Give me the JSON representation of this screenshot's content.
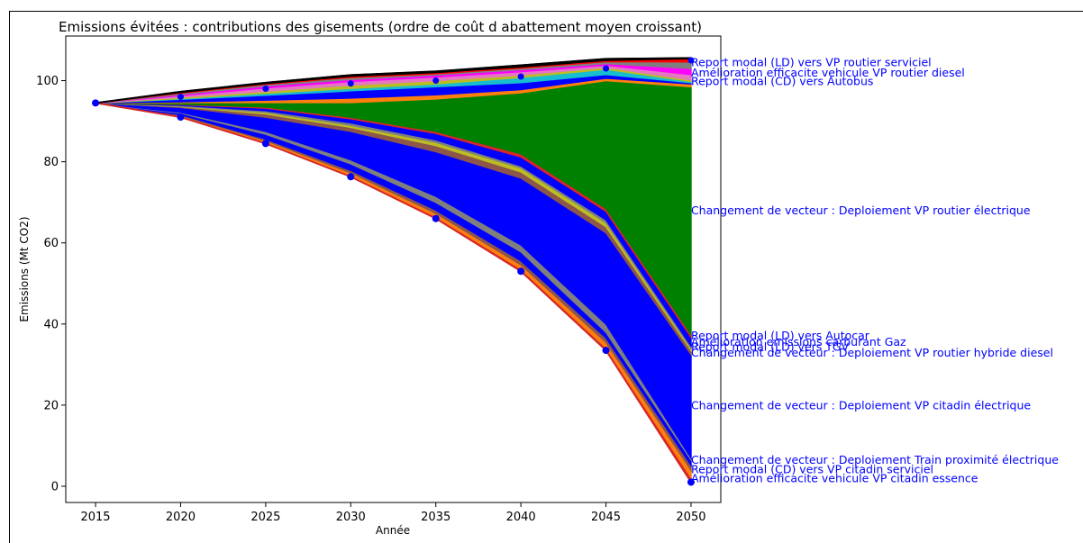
{
  "chart_data": {
    "type": "area",
    "title": "Emissions évitées : contributions des gisements (ordre de coût d abattement moyen croissant)",
    "xlabel": "Année",
    "ylabel": "Emissions (Mt CO2)",
    "x": [
      2015,
      2020,
      2025,
      2030,
      2035,
      2040,
      2045,
      2050
    ],
    "xticks": [
      "2015",
      "2020",
      "2025",
      "2030",
      "2035",
      "2040",
      "2045",
      "2050"
    ],
    "yticks": [
      "0",
      "20",
      "40",
      "60",
      "80",
      "100"
    ],
    "ylim": [
      -4,
      111
    ],
    "boundaries": [
      [
        94.5,
        91.0,
        84.5,
        76.3,
        66.0,
        53.0,
        33.5,
        1.0
      ],
      [
        94.5,
        91.2,
        84.8,
        76.7,
        66.5,
        53.6,
        34.2,
        2.2
      ],
      [
        94.5,
        91.4,
        85.2,
        77.3,
        67.3,
        54.6,
        35.5,
        4.0
      ],
      [
        94.5,
        91.6,
        85.6,
        77.9,
        68.1,
        55.6,
        36.6,
        5.2
      ],
      [
        94.5,
        92.0,
        86.8,
        79.5,
        70.0,
        57.8,
        38.0,
        6.5
      ],
      [
        94.5,
        92.2,
        87.5,
        80.5,
        71.5,
        59.5,
        40.0,
        7.0
      ],
      [
        94.5,
        93.4,
        91.0,
        87.5,
        82.5,
        76.0,
        62.5,
        32.5
      ],
      [
        94.5,
        93.6,
        91.8,
        88.5,
        84.0,
        77.5,
        64.0,
        33.5
      ],
      [
        94.5,
        93.7,
        92.2,
        89.0,
        84.8,
        78.5,
        65.0,
        34.0
      ],
      [
        94.5,
        93.9,
        92.6,
        89.6,
        85.4,
        79.0,
        65.7,
        34.6
      ],
      [
        94.5,
        94.1,
        93.2,
        90.6,
        87.0,
        81.2,
        67.8,
        36.8
      ],
      [
        94.5,
        94.2,
        93.5,
        91.0,
        87.5,
        82.0,
        68.5,
        37.5
      ],
      [
        94.5,
        94.6,
        94.6,
        94.6,
        95.5,
        97.0,
        100.0,
        98.5
      ],
      [
        94.5,
        94.8,
        95.2,
        95.7,
        96.5,
        97.8,
        100.6,
        99.2
      ],
      [
        94.5,
        95.4,
        96.4,
        97.5,
        98.5,
        99.5,
        101.5,
        99.5
      ],
      [
        94.5,
        95.6,
        96.9,
        98.1,
        99.2,
        100.8,
        102.8,
        99.8
      ],
      [
        94.5,
        95.9,
        97.4,
        98.9,
        100.0,
        101.4,
        103.3,
        100.2
      ],
      [
        94.5,
        96.3,
        98.2,
        99.8,
        100.9,
        102.2,
        103.8,
        101.5
      ],
      [
        94.5,
        96.6,
        98.7,
        100.3,
        101.4,
        102.7,
        104.2,
        103.0
      ],
      [
        94.5,
        96.9,
        99.1,
        100.8,
        101.7,
        103.1,
        104.7,
        104.6
      ],
      [
        94.5,
        97.1,
        99.3,
        101.1,
        102.0,
        103.4,
        105.0,
        105.4
      ],
      [
        94.5,
        97.3,
        99.5,
        101.4,
        102.3,
        103.8,
        105.4,
        105.6
      ]
    ],
    "band_colors": [
      "#d62728",
      "#ff7f0e",
      "#8c564b",
      "#0000ff",
      "#7f7f7f",
      "#0000ff",
      "#8c564b",
      "#bcbd22",
      "#7f7f7f",
      "#0000ff",
      "#d62728",
      "#008000",
      "#ff7f0e",
      "#0000ff",
      "#17becf",
      "#bcbd22",
      "#e377c2",
      "#ff00ff",
      "#7f7f7f",
      "#ff0000",
      "#000000"
    ],
    "points": [
      94.5,
      91.0,
      84.5,
      76.3,
      66.0,
      53.0,
      33.5,
      1.0
    ],
    "points_top": [
      94.5,
      96.0,
      98.0,
      99.3,
      100.0,
      101.0,
      103.0,
      105.0
    ],
    "annotations": [
      {
        "text": "Report modal (LD) vers VP routier serviciel",
        "y": 104.6
      },
      {
        "text": "Amélioration efficacite vehicule VP routier diesel",
        "y": 102.0
      },
      {
        "text": "Report modal (CD) vers Autobus",
        "y": 99.9
      },
      {
        "text": "Changement de vecteur : Deploiement VP routier électrique",
        "y": 68.0
      },
      {
        "text": "Report modal (LD) vers Autocar",
        "y": 37.2
      },
      {
        "text": "Amélioration emissions carburant Gaz",
        "y": 35.6
      },
      {
        "text": "Report modal (LD) vers TGV",
        "y": 34.4
      },
      {
        "text": "Changement de vecteur : Deploiement VP routier hybride diesel",
        "y": 33.0
      },
      {
        "text": "Changement de vecteur : Deploiement VP citadin électrique",
        "y": 20.0
      },
      {
        "text": "Changement de vecteur : Deploiement Train proximité électrique",
        "y": 6.5
      },
      {
        "text": "Report modal (CD) vers VP citadin serviciel",
        "y": 4.2
      },
      {
        "text": "Amélioration efficacite vehicule VP citadin essence",
        "y": 2.0
      }
    ]
  }
}
